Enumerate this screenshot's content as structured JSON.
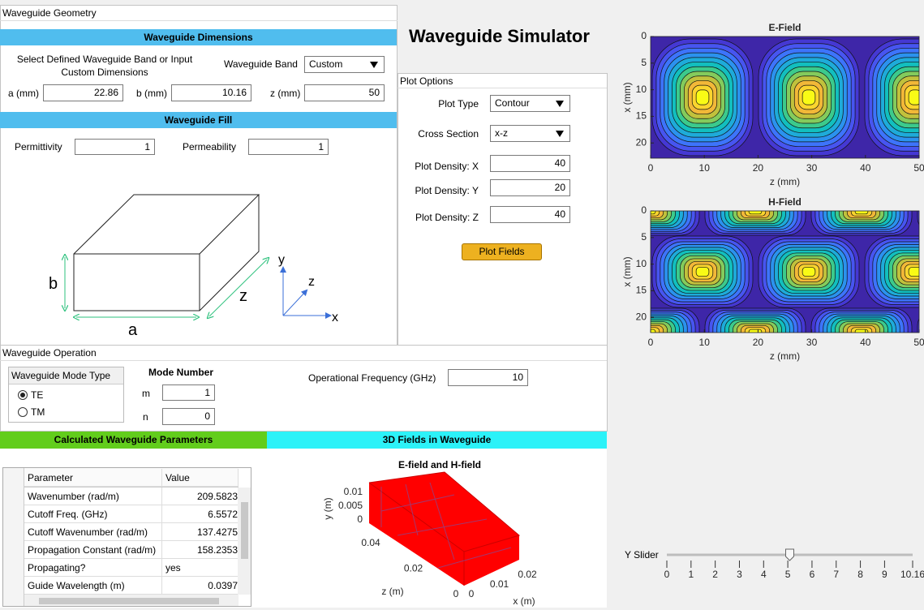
{
  "app_title": "Waveguide Simulator",
  "geometry": {
    "title": "Waveguide Geometry",
    "dimensions": {
      "header": "Waveguide Dimensions",
      "prompt": "Select Defined Waveguide Band or Input Custom Dimensions",
      "band_label": "Waveguide Band",
      "band_value": "Custom",
      "a_label": "a (mm)",
      "a": 22.86,
      "b_label": "b (mm)",
      "b": 10.16,
      "z_label": "z (mm)",
      "z": 50
    },
    "fill": {
      "header": "Waveguide Fill",
      "permittivity_label": "Permittivity",
      "permittivity": 1,
      "permeability_label": "Permeability",
      "permeability": 1
    },
    "diagram": {
      "a": "a",
      "b": "b",
      "z": "z",
      "axis_x": "x",
      "axis_y": "y",
      "axis_z": "z"
    }
  },
  "plot_options": {
    "title": "Plot Options",
    "plot_type_label": "Plot Type",
    "plot_type": "Contour",
    "cross_section_label": "Cross Section",
    "cross_section": "x-z",
    "density_x_label": "Plot Density: X",
    "density_x": 40,
    "density_y_label": "Plot Density: Y",
    "density_y": 20,
    "density_z_label": "Plot Density: Z",
    "density_z": 40,
    "button": "Plot Fields"
  },
  "operation": {
    "title": "Waveguide Operation",
    "mode_type_label": "Waveguide Mode Type",
    "options": [
      "TE",
      "TM"
    ],
    "selected": "TE",
    "mode_number_label": "Mode Number",
    "m_label": "m",
    "m": 1,
    "n_label": "n",
    "n": 0,
    "frequency_label": "Operational Frequency (GHz)",
    "frequency": 10
  },
  "parameters": {
    "header": "Calculated Waveguide Parameters",
    "columns": [
      "Parameter",
      "Value"
    ],
    "rows": [
      [
        "Wavenumber (rad/m)",
        209.5823
      ],
      [
        "Cutoff Freq. (GHz)",
        6.5572
      ],
      [
        "Cutoff Wavenumber (rad/m)",
        137.4275
      ],
      [
        "Propagation Constant (rad/m)",
        158.2353
      ],
      [
        "Propagating?",
        "yes"
      ],
      [
        "Guide Wavelength (m)",
        0.0397
      ]
    ]
  },
  "fields_3d": {
    "header": "3D Fields in Waveguide",
    "title": "E-field and H-field",
    "xlabel": "x (m)",
    "ylabel": "y (m)",
    "zlabel": "z (m)",
    "xticks": [
      0,
      0.01,
      0.02
    ],
    "yticks": [
      0.01,
      0.005,
      0
    ],
    "zticks": [
      0.04,
      0.02,
      0
    ]
  },
  "e_field": {
    "title": "E-Field",
    "xlabel": "z (mm)",
    "ylabel": "x (mm)",
    "xlim": [
      0,
      50
    ],
    "ylim": [
      0,
      22.86
    ],
    "xticks": [
      0,
      10,
      20,
      30,
      40,
      50
    ],
    "yticks": [
      0,
      5,
      10,
      15,
      20
    ]
  },
  "h_field": {
    "title": "H-Field",
    "xlabel": "z (mm)",
    "ylabel": "x (mm)",
    "xlim": [
      0,
      50
    ],
    "ylim": [
      0,
      22.86
    ],
    "xticks": [
      0,
      10,
      20,
      30,
      40,
      50
    ],
    "yticks": [
      0,
      5,
      10,
      15,
      20
    ]
  },
  "y_slider": {
    "label": "Y Slider",
    "lim": [
      0,
      10.16
    ],
    "ticks": [
      0,
      1,
      2,
      3,
      4,
      5,
      6,
      7,
      8,
      9,
      10.16
    ],
    "value": 5.08
  }
}
